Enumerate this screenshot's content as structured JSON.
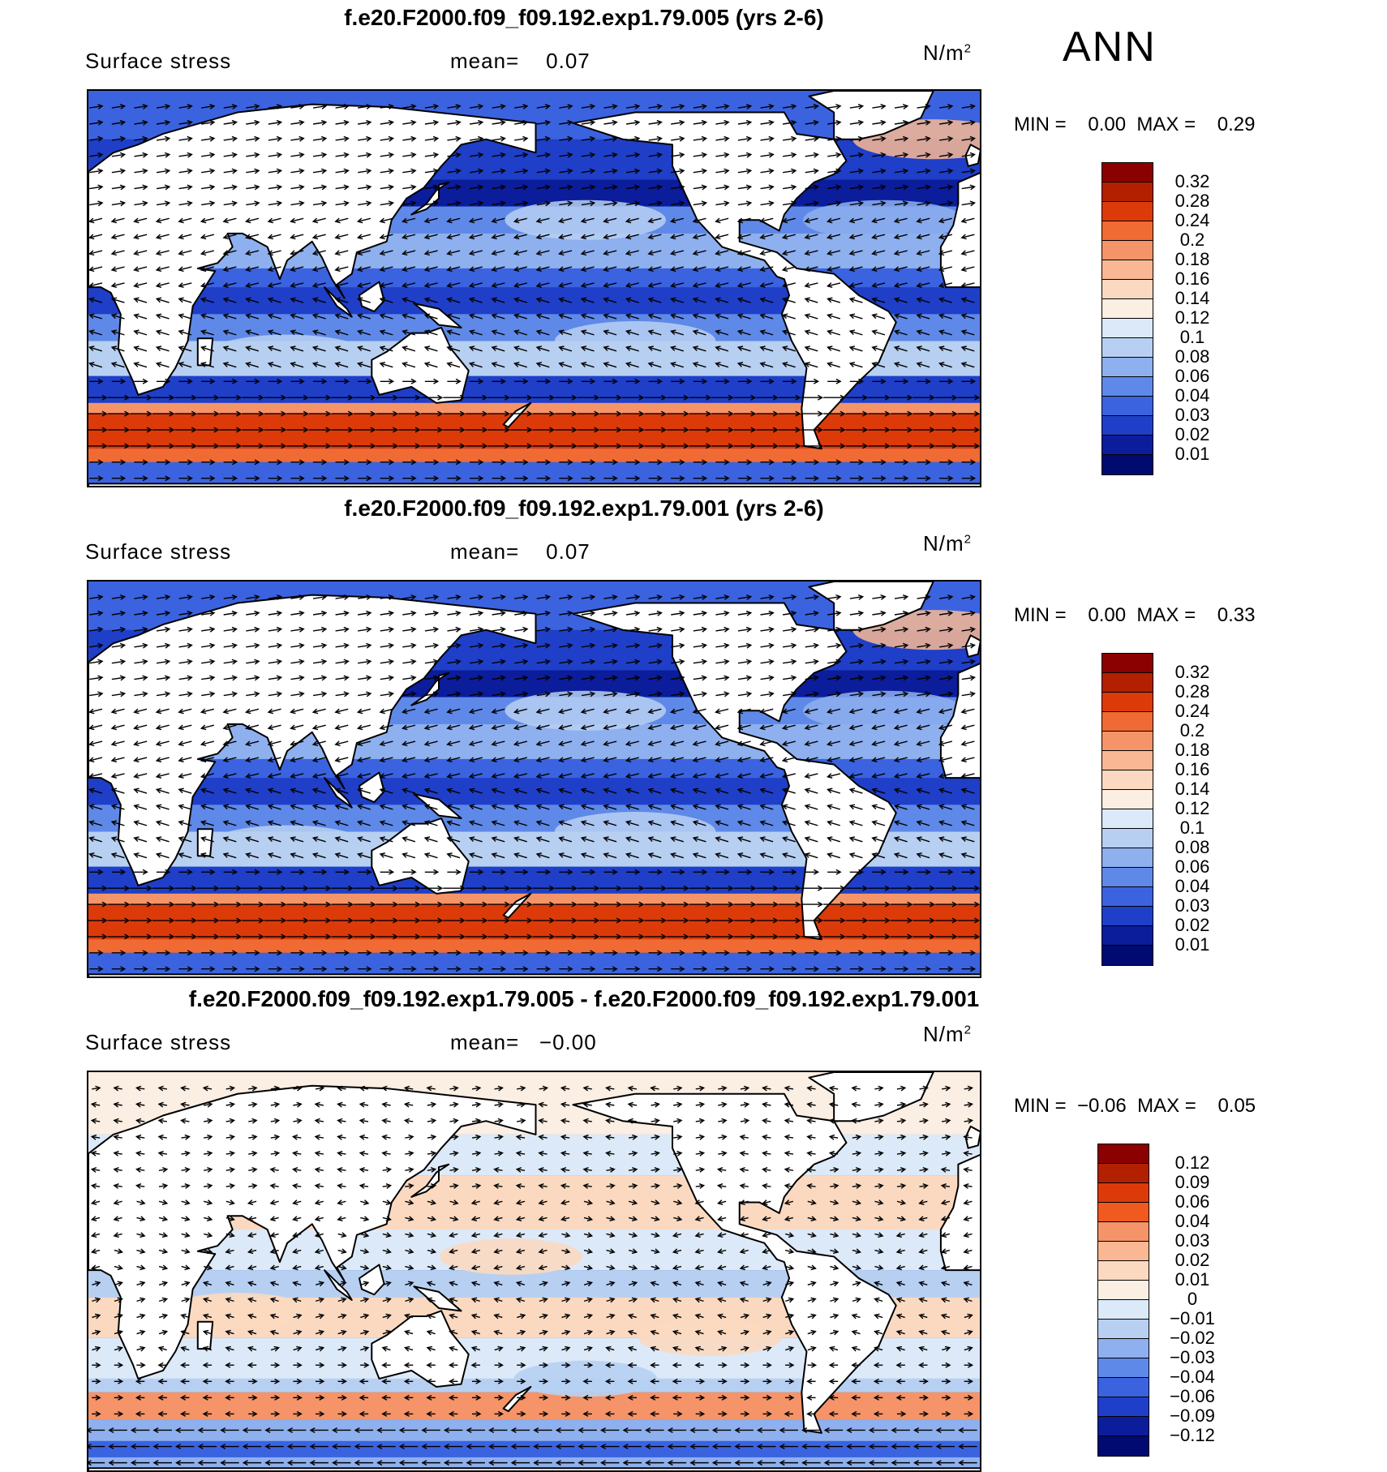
{
  "season": "ANN",
  "panels": [
    {
      "title": "f.e20.F2000.f09_f09.192.exp1.79.005 (yrs 2-6)",
      "variable": "Surface stress",
      "mean_label": "mean=",
      "mean_value": "0.07",
      "units": "N/m",
      "units_sup": "2",
      "minmax": "MIN =    0.00  MAX =    0.29",
      "colorbar": {
        "labels": [
          "0.32",
          "0.28",
          "0.24",
          "0.2",
          "0.18",
          "0.16",
          "0.14",
          "0.12",
          "0.1",
          "0.08",
          "0.06",
          "0.04",
          "0.03",
          "0.02",
          "0.01"
        ],
        "colors": [
          "#8b0000",
          "#b22000",
          "#dd3a0a",
          "#f06a34",
          "#f59468",
          "#f9b893",
          "#fbd9c0",
          "#fbeee2",
          "#dce9f8",
          "#b7d0f2",
          "#8eb0ee",
          "#5f89e8",
          "#3b63e0",
          "#1f3fc8",
          "#0b1d9a",
          "#000a70"
        ]
      },
      "map_style": "full"
    },
    {
      "title": "f.e20.F2000.f09_f09.192.exp1.79.001 (yrs 2-6)",
      "variable": "Surface stress",
      "mean_label": "mean=",
      "mean_value": "0.07",
      "units": "N/m",
      "units_sup": "2",
      "minmax": "MIN =    0.00  MAX =    0.33",
      "colorbar": {
        "labels": [
          "0.32",
          "0.28",
          "0.24",
          "0.2",
          "0.18",
          "0.16",
          "0.14",
          "0.12",
          "0.1",
          "0.08",
          "0.06",
          "0.04",
          "0.03",
          "0.02",
          "0.01"
        ],
        "colors": [
          "#8b0000",
          "#b22000",
          "#dd3a0a",
          "#f06a34",
          "#f59468",
          "#f9b893",
          "#fbd9c0",
          "#fbeee2",
          "#dce9f8",
          "#b7d0f2",
          "#8eb0ee",
          "#5f89e8",
          "#3b63e0",
          "#1f3fc8",
          "#0b1d9a",
          "#000a70"
        ]
      },
      "map_style": "full"
    },
    {
      "title": "f.e20.F2000.f09_f09.192.exp1.79.005 - f.e20.F2000.f09_f09.192.exp1.79.001",
      "variable": "Surface stress",
      "mean_label": "mean=",
      "mean_value": "−0.00",
      "units": "N/m",
      "units_sup": "2",
      "minmax": "MIN =  −0.06  MAX =    0.05",
      "colorbar": {
        "labels": [
          "0.12",
          "0.09",
          "0.06",
          "0.04",
          "0.03",
          "0.02",
          "0.01",
          "0",
          "−0.01",
          "−0.02",
          "−0.03",
          "−0.04",
          "−0.06",
          "−0.09",
          "−0.12"
        ],
        "colors": [
          "#8b0000",
          "#b22000",
          "#dd3a0a",
          "#f05a20",
          "#f59468",
          "#f9b893",
          "#fbd9c0",
          "#fbeee2",
          "#dce9f8",
          "#b7d0f2",
          "#8eb0ee",
          "#5f89e8",
          "#3b63e0",
          "#1f3fc8",
          "#0b1d9a",
          "#000a70"
        ]
      },
      "map_style": "diff"
    }
  ],
  "chart_data": {
    "type": "heatmap",
    "title": "",
    "xlabel": "",
    "ylabel": "",
    "maps": [
      {
        "name": "f.e20.F2000.f09_f09.192.exp1.79.005 (yrs 2-6)",
        "variable": "Surface stress",
        "mean": 0.07,
        "min": 0.0,
        "max": 0.29,
        "units": "N/m2",
        "levels": [
          0.01,
          0.02,
          0.03,
          0.04,
          0.06,
          0.08,
          0.1,
          0.12,
          0.14,
          0.16,
          0.18,
          0.2,
          0.24,
          0.28,
          0.32
        ]
      },
      {
        "name": "f.e20.F2000.f09_f09.192.exp1.79.001 (yrs 2-6)",
        "variable": "Surface stress",
        "mean": 0.07,
        "min": 0.0,
        "max": 0.33,
        "units": "N/m2",
        "levels": [
          0.01,
          0.02,
          0.03,
          0.04,
          0.06,
          0.08,
          0.1,
          0.12,
          0.14,
          0.16,
          0.18,
          0.2,
          0.24,
          0.28,
          0.32
        ]
      },
      {
        "name": "f.e20.F2000.f09_f09.192.exp1.79.005 - f.e20.F2000.f09_f09.192.exp1.79.001",
        "variable": "Surface stress",
        "mean": -0.0,
        "min": -0.06,
        "max": 0.05,
        "units": "N/m2",
        "levels": [
          -0.12,
          -0.09,
          -0.06,
          -0.04,
          -0.03,
          -0.02,
          -0.01,
          0,
          0.01,
          0.02,
          0.03,
          0.04,
          0.06,
          0.09,
          0.12
        ]
      }
    ]
  }
}
